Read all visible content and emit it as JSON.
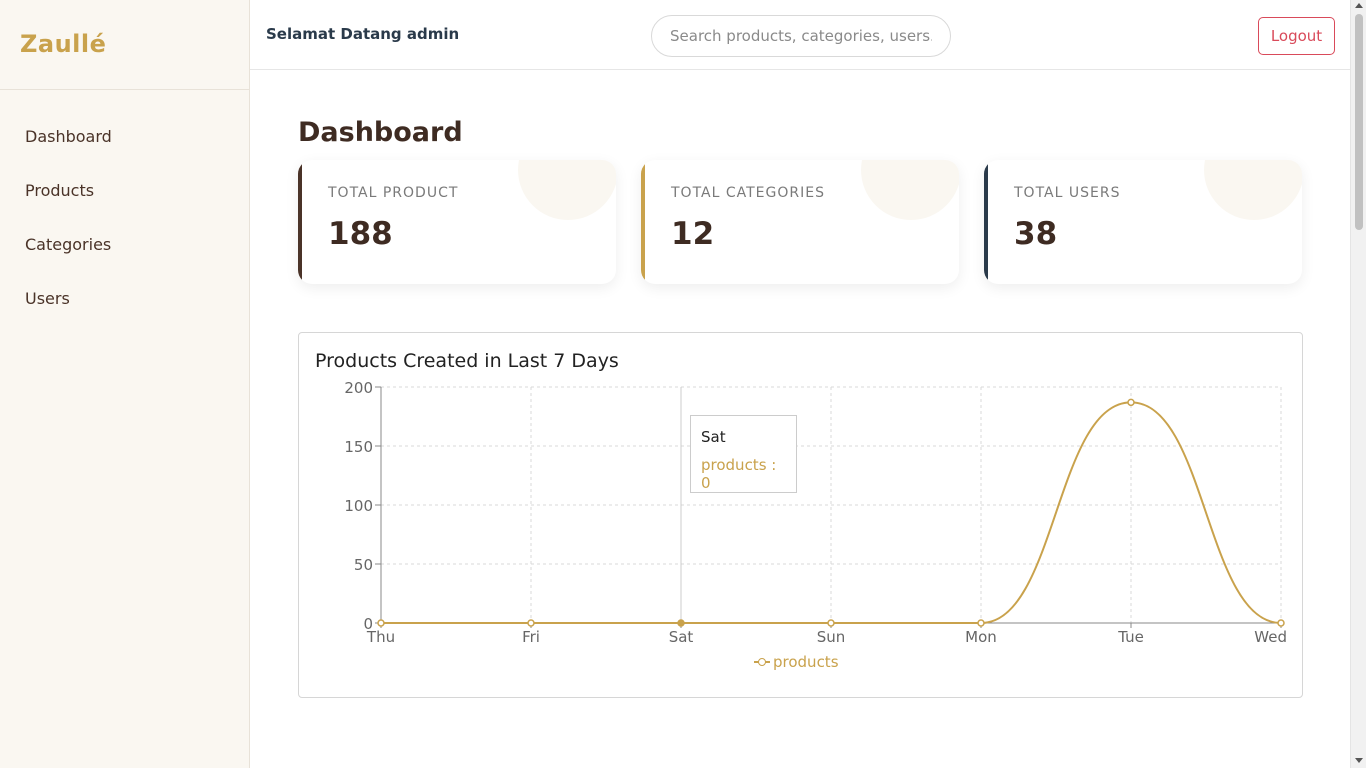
{
  "brand": "Zaullé",
  "sidebar": {
    "items": [
      {
        "label": "Dashboard"
      },
      {
        "label": "Products"
      },
      {
        "label": "Categories"
      },
      {
        "label": "Users"
      }
    ]
  },
  "header": {
    "welcome": "Selamat Datang admin",
    "search_placeholder": "Search products, categories, users...",
    "logout_label": "Logout"
  },
  "main": {
    "title": "Dashboard",
    "stats": [
      {
        "label": "TOTAL PRODUCT",
        "value": "188",
        "accent": "#4a3328"
      },
      {
        "label": "TOTAL CATEGORIES",
        "value": "12",
        "accent": "#c9a24c"
      },
      {
        "label": "TOTAL USERS",
        "value": "38",
        "accent": "#2a3a4a"
      }
    ]
  },
  "colors": {
    "accent_gold": "#c9a24c",
    "brown": "#4a3328",
    "navy": "#2a3a4a",
    "logout_red": "#d94a5a"
  },
  "chart_data": {
    "type": "line",
    "title": "Products Created in Last 7 Days",
    "categories": [
      "Thu",
      "Fri",
      "Sat",
      "Sun",
      "Mon",
      "Tue",
      "Wed"
    ],
    "series": [
      {
        "name": "products",
        "values": [
          0,
          0,
          0,
          0,
          0,
          187,
          0
        ],
        "color": "#c9a24c"
      }
    ],
    "ylim": [
      0,
      200
    ],
    "yticks": [
      0,
      50,
      100,
      150,
      200
    ],
    "grid": true,
    "legend": "bottom-center",
    "tooltip": {
      "label": "Sat",
      "value_text": "products : 0"
    }
  }
}
